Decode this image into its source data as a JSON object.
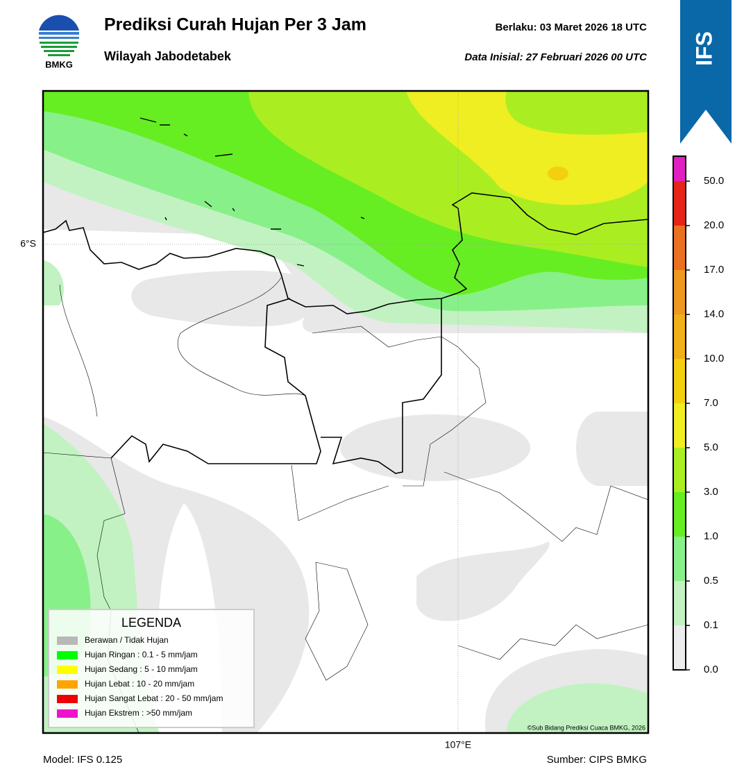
{
  "logo": "BMKG",
  "title": "Prediksi Curah Hujan Per 3 Jam",
  "subtitle": "Wilayah Jabodetabek",
  "valid": "Berlaku:  03 Maret 2026 18 UTC",
  "init": "Data Inisial:  27 Februari 2026 00 UTC",
  "badge": "IFS",
  "map": {
    "lat_label": "6°S",
    "lon_label": "107°E",
    "credit": "©Sub Bidang Prediksi Cuaca BMKG, 2026"
  },
  "colorbar": {
    "labels": [
      "0.0",
      "0.1",
      "0.5",
      "1.0",
      "3.0",
      "5.0",
      "7.0",
      "10.0",
      "14.0",
      "17.0",
      "20.0",
      "50.0"
    ],
    "colors": [
      "#ececec",
      "#c2f2c2",
      "#88f088",
      "#66ee22",
      "#aaee22",
      "#eeee22",
      "#f2d010",
      "#f0b018",
      "#ee9820",
      "#ea7022",
      "#e62418",
      "#e020c0"
    ]
  },
  "legend": {
    "title": "LEGENDA",
    "items": [
      {
        "label": "Berawan / Tidak Hujan",
        "color": "#b8b8b8"
      },
      {
        "label": "Hujan Ringan : 0.1 - 5 mm/jam",
        "color": "#00ff00"
      },
      {
        "label": "Hujan Sedang : 5 - 10 mm/jam",
        "color": "#ffff00"
      },
      {
        "label": "Hujan Lebat : 10 - 20 mm/jam",
        "color": "#ffa500"
      },
      {
        "label": "Hujan Sangat Lebat : 20 - 50 mm/jam",
        "color": "#ee0000"
      },
      {
        "label": "Hujan Ekstrem : >50 mm/jam",
        "color": "#ee11cc"
      }
    ]
  },
  "footer": {
    "model": "Model: IFS 0.125",
    "source": "Sumber: CIPS BMKG"
  }
}
